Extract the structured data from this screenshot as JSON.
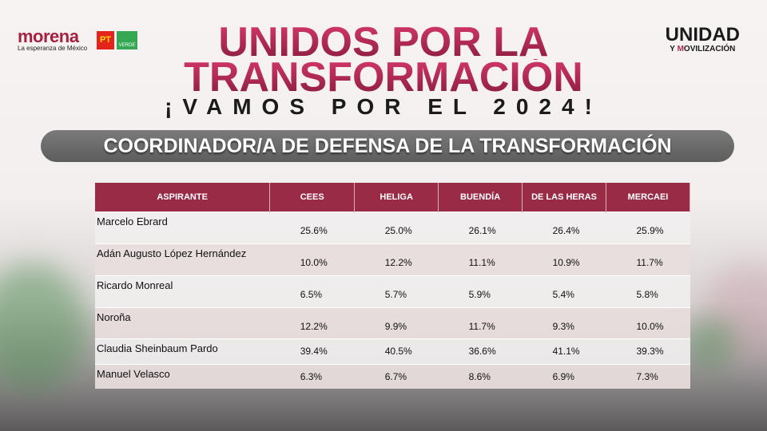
{
  "logos": {
    "morena": "morena",
    "morena_tagline": "La esperanza de México",
    "pt": "PT",
    "verde": "VERDE",
    "unidad_line1": "UNIDAD",
    "unidad_line2_y": "Y ",
    "unidad_line2_m": "M",
    "unidad_line2_rest": "OVILIZACIÓN"
  },
  "header": {
    "title_line1": "UNIDOS POR LA",
    "title_line2": "TRANSFORMACIÓN",
    "subtitle": "¡VAMOS POR EL 2024!",
    "banner": "COORDINADOR/A DE DEFENSA DE LA TRANSFORMACIÓN"
  },
  "colors": {
    "accent": "#9a2b47",
    "title": "#b42a55"
  },
  "table": {
    "columns": [
      "ASPIRANTE",
      "CEES",
      "HELIGA",
      "BUENDÍA",
      "DE LAS HERAS",
      "MERCAEI"
    ],
    "rows": [
      {
        "name": "Marcelo Ebrard",
        "values": [
          "25.6%",
          "25.0%",
          "26.1%",
          "26.4%",
          "25.9%"
        ]
      },
      {
        "name": "Adán Augusto López Hernández",
        "values": [
          "10.0%",
          "12.2%",
          "11.1%",
          "10.9%",
          "11.7%"
        ]
      },
      {
        "name": "Ricardo Monreal",
        "values": [
          "6.5%",
          "5.7%",
          "5.9%",
          "5.4%",
          "5.8%"
        ]
      },
      {
        "name": "Noroña",
        "values": [
          "12.2%",
          "9.9%",
          "11.7%",
          "9.3%",
          "10.0%"
        ]
      },
      {
        "name": "Claudia Sheinbaum Pardo",
        "values": [
          "39.4%",
          "40.5%",
          "36.6%",
          "41.1%",
          "39.3%"
        ]
      },
      {
        "name": "Manuel Velasco",
        "values": [
          "6.3%",
          "6.7%",
          "8.6%",
          "6.9%",
          "7.3%"
        ]
      }
    ]
  }
}
